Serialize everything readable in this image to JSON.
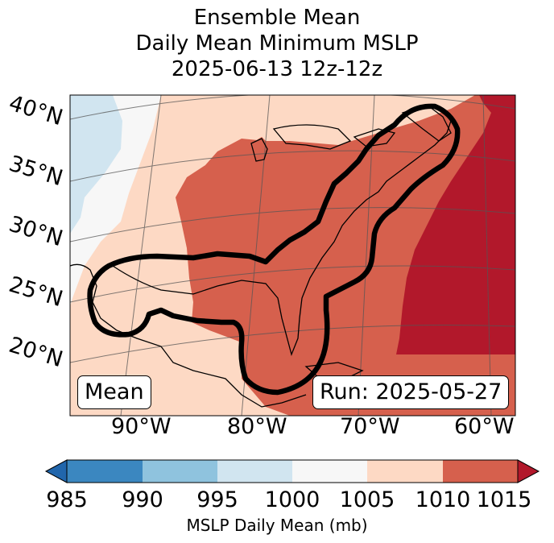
{
  "title": {
    "line1": "Ensemble Mean",
    "line2": "Daily Mean Minimum MSLP",
    "line3": "2025-06-13 12z-12z"
  },
  "map": {
    "lat_labels": [
      "40°N",
      "35°N",
      "30°N",
      "25°N",
      "20°N"
    ],
    "lon_labels": [
      "90°W",
      "80°W",
      "70°W",
      "60°W"
    ],
    "mean_label": "Mean",
    "run_label": "Run: 2025-05-27"
  },
  "colors": {
    "c985_990": "#3b87c0",
    "c990_995": "#8fc3de",
    "c995_1000": "#d1e5f0",
    "c1000_1005": "#f7f7f7",
    "c1005_1010": "#fdd9c4",
    "c1010_1015": "#d6604d",
    "c_over": "#b2182b",
    "c_under": "#2166ac"
  },
  "colorbar": {
    "ticks": [
      "985",
      "990",
      "995",
      "1000",
      "1005",
      "1010",
      "1015"
    ],
    "label": "MSLP Daily Mean (mb)"
  }
}
